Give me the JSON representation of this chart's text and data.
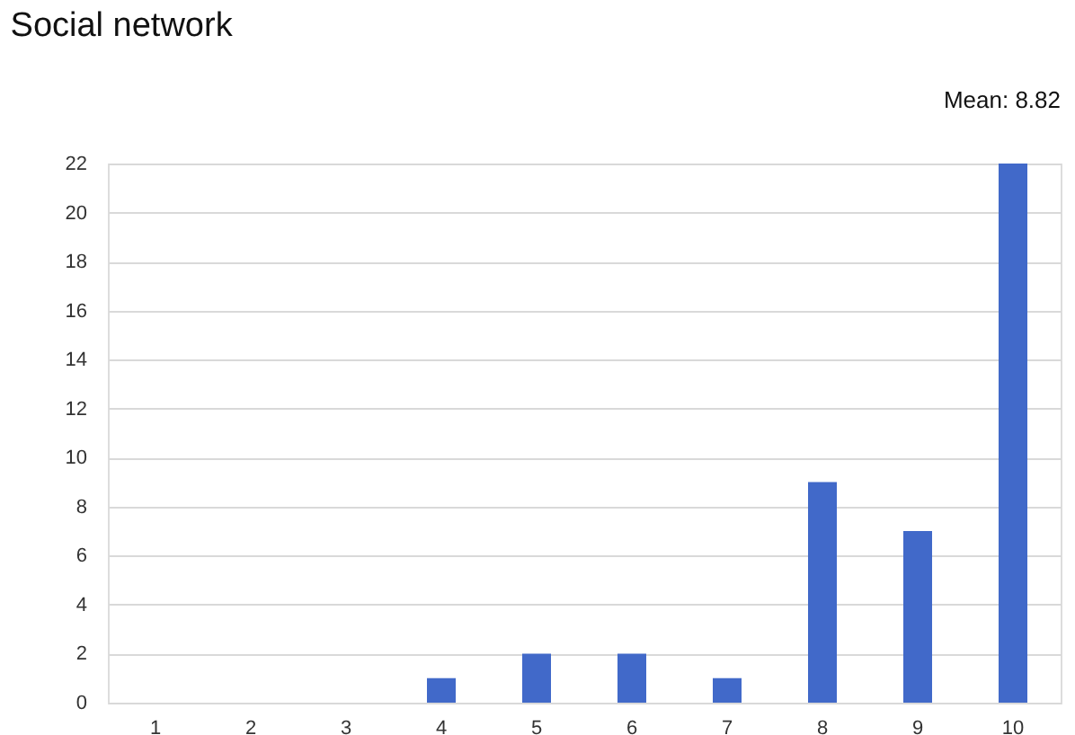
{
  "chart_data": {
    "type": "bar",
    "title": "Social network",
    "annotations": [
      "Mean: 8.82"
    ],
    "categories": [
      "1",
      "2",
      "3",
      "4",
      "5",
      "6",
      "7",
      "8",
      "9",
      "10"
    ],
    "values": [
      0,
      0,
      0,
      1,
      2,
      2,
      1,
      9,
      7,
      22
    ],
    "color": "#4169c9",
    "ylim": [
      0,
      22
    ],
    "yticks": [
      0,
      2,
      4,
      6,
      8,
      10,
      12,
      14,
      16,
      18,
      20,
      22
    ],
    "grid": "y"
  }
}
